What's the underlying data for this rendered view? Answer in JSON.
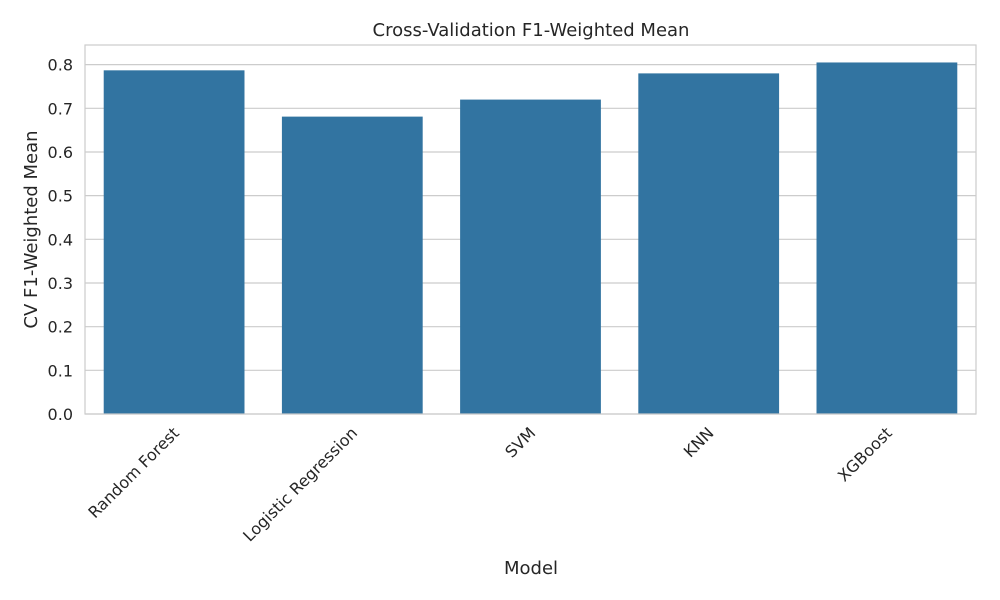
{
  "chart_data": {
    "type": "bar",
    "title": "Cross-Validation F1-Weighted Mean",
    "xlabel": "Model",
    "ylabel": "CV F1-Weighted Mean",
    "categories": [
      "Random Forest",
      "Logistic Regression",
      "SVM",
      "KNN",
      "XGBoost"
    ],
    "values": [
      0.787,
      0.681,
      0.72,
      0.78,
      0.805
    ],
    "ylim": [
      0,
      0.845
    ],
    "yticks": [
      "0.0",
      "0.1",
      "0.2",
      "0.3",
      "0.4",
      "0.5",
      "0.6",
      "0.7",
      "0.8"
    ],
    "grid": true,
    "bar_color": "#3274a1",
    "grid_color": "#cccccc"
  }
}
